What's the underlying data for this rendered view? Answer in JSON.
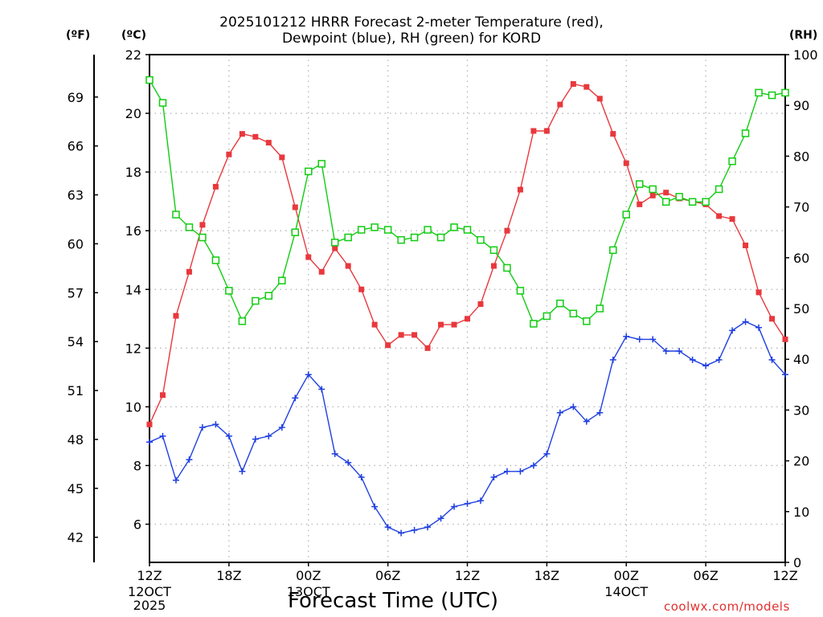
{
  "header": {
    "title_line1": "2025101212 HRRR Forecast 2-meter Temperature (red),",
    "title_line2": "Dewpoint (blue), RH (green) for KORD",
    "unit_f": "(ºF)",
    "unit_c": "(ºC)",
    "unit_rh": "(RH)"
  },
  "footer": {
    "xlabel": "Forecast Time (UTC)",
    "credit": "coolwx.com/models"
  },
  "chart_data": {
    "type": "line",
    "x_unit": "forecast hour from 2025-10-12 12Z",
    "x": [
      0,
      1,
      2,
      3,
      4,
      5,
      6,
      7,
      8,
      9,
      10,
      11,
      12,
      13,
      14,
      15,
      16,
      17,
      18,
      19,
      20,
      21,
      22,
      23,
      24,
      25,
      26,
      27,
      28,
      29,
      30,
      31,
      32,
      33,
      34,
      35,
      36,
      37,
      38,
      39,
      40,
      41,
      42,
      43,
      44,
      45,
      46,
      47,
      48
    ],
    "x_ticks": [
      {
        "hour": 0,
        "label": "12Z",
        "sub": [
          "12OCT",
          "2025"
        ]
      },
      {
        "hour": 6,
        "label": "18Z",
        "sub": []
      },
      {
        "hour": 12,
        "label": "00Z",
        "sub": [
          "13OCT"
        ]
      },
      {
        "hour": 18,
        "label": "06Z",
        "sub": []
      },
      {
        "hour": 24,
        "label": "12Z",
        "sub": []
      },
      {
        "hour": 30,
        "label": "18Z",
        "sub": []
      },
      {
        "hour": 36,
        "label": "00Z",
        "sub": [
          "14OCT"
        ]
      },
      {
        "hour": 42,
        "label": "06Z",
        "sub": []
      },
      {
        "hour": 48,
        "label": "12Z",
        "sub": []
      }
    ],
    "xlim": [
      0,
      48
    ],
    "y_left": {
      "label": "(ºC)",
      "ylim": [
        4.7,
        22
      ],
      "ticks": [
        6,
        8,
        10,
        12,
        14,
        16,
        18,
        20,
        22
      ]
    },
    "y_far_left": {
      "label": "(ºF)",
      "ticks": [
        42,
        45,
        48,
        51,
        54,
        57,
        60,
        63,
        66,
        69
      ]
    },
    "y_right": {
      "label": "(RH)",
      "ylim": [
        0,
        100
      ],
      "ticks": [
        0,
        10,
        20,
        30,
        40,
        50,
        60,
        70,
        80,
        90,
        100
      ]
    },
    "grid": true,
    "series": [
      {
        "name": "2-meter Temperature",
        "color": "#e8383d",
        "axis": "left",
        "marker": "filled-square",
        "values": [
          9.4,
          10.4,
          13.1,
          14.6,
          16.2,
          17.5,
          18.6,
          19.3,
          19.2,
          19.0,
          18.5,
          16.8,
          15.1,
          14.6,
          15.4,
          14.8,
          14.0,
          12.8,
          12.1,
          12.45,
          12.45,
          12.0,
          12.8,
          12.8,
          13.0,
          13.5,
          14.8,
          16.0,
          17.4,
          19.4,
          19.4,
          20.3,
          21.0,
          20.9,
          20.5,
          19.3,
          18.3,
          16.9,
          17.2,
          17.3,
          17.1,
          17.0,
          16.9,
          16.5,
          16.4,
          15.5,
          13.9,
          13.0,
          12.3
        ]
      },
      {
        "name": "Dewpoint",
        "color": "#1f3fe0",
        "axis": "left",
        "marker": "plus",
        "values": [
          8.8,
          9.0,
          7.5,
          8.2,
          9.3,
          9.4,
          9.0,
          7.8,
          8.9,
          9.0,
          9.3,
          10.3,
          11.1,
          10.6,
          8.4,
          8.1,
          7.6,
          6.6,
          5.9,
          5.7,
          5.8,
          5.9,
          6.2,
          6.6,
          6.7,
          6.8,
          7.6,
          7.8,
          7.8,
          8.0,
          8.4,
          9.8,
          10.0,
          9.5,
          9.8,
          11.6,
          12.4,
          12.3,
          12.3,
          11.9,
          11.9,
          11.6,
          11.4,
          11.6,
          12.6,
          12.9,
          12.7,
          11.6,
          11.1
        ]
      },
      {
        "name": "RH",
        "color": "#11cc11",
        "axis": "right",
        "marker": "open-square",
        "values": [
          95,
          90.5,
          68.5,
          66,
          64,
          59.5,
          53.5,
          47.5,
          51.5,
          52.5,
          55.5,
          65,
          77,
          78.5,
          63,
          64,
          65.5,
          66,
          65.5,
          63.5,
          64,
          65.5,
          64,
          66,
          65.5,
          63.5,
          61.5,
          58,
          53.5,
          47,
          48.5,
          51,
          49,
          47.5,
          50,
          61.5,
          68.5,
          74.5,
          73.5,
          71,
          72,
          71,
          71,
          73.5,
          79,
          84.5,
          92.5,
          92,
          92.5
        ]
      }
    ]
  }
}
